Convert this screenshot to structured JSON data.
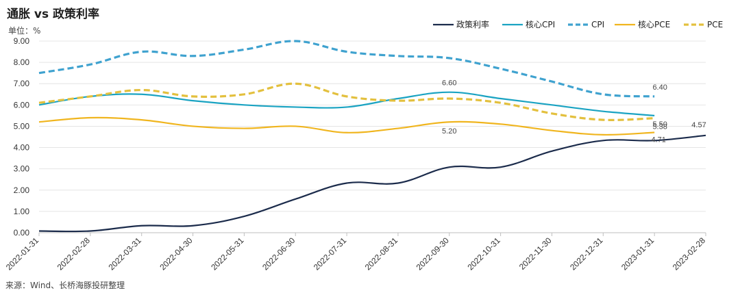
{
  "title": "通胀 vs 政策利率",
  "unit_label": "单位：%",
  "source": "来源：Wind、长桥海豚投研整理",
  "chart_data": {
    "type": "line",
    "categories": [
      "2022-01-31",
      "2022-02-28",
      "2022-03-31",
      "2022-04-30",
      "2022-05-31",
      "2022-06-30",
      "2022-07-31",
      "2022-08-31",
      "2022-09-30",
      "2022-10-31",
      "2022-11-30",
      "2022-12-31",
      "2023-01-31",
      "2023-02-28"
    ],
    "ylim": [
      0,
      9
    ],
    "yticks": [
      "0.00",
      "1.00",
      "2.00",
      "3.00",
      "4.00",
      "5.00",
      "6.00",
      "7.00",
      "8.00",
      "9.00"
    ],
    "grid": true,
    "legend_position": "top-right",
    "series": [
      {
        "name": "政策利率",
        "color": "#1b2b4b",
        "dash": false,
        "values": [
          0.08,
          0.08,
          0.33,
          0.33,
          0.77,
          1.58,
          2.33,
          2.33,
          3.08,
          3.08,
          3.83,
          4.33,
          4.33,
          4.57
        ]
      },
      {
        "name": "核心CPI",
        "color": "#1aa3c2",
        "dash": false,
        "values": [
          6.0,
          6.4,
          6.5,
          6.2,
          6.0,
          5.9,
          5.9,
          6.3,
          6.6,
          6.3,
          6.0,
          5.7,
          5.5,
          null
        ]
      },
      {
        "name": "CPI",
        "color": "#3fa2cf",
        "dash": true,
        "values": [
          7.5,
          7.9,
          8.5,
          8.3,
          8.6,
          9.1,
          8.5,
          8.3,
          8.2,
          7.7,
          7.1,
          6.5,
          6.4,
          null
        ]
      },
      {
        "name": "核心PCE",
        "color": "#f0b51e",
        "dash": false,
        "values": [
          5.2,
          5.4,
          5.3,
          5.0,
          4.9,
          5.0,
          4.7,
          4.9,
          5.2,
          5.1,
          4.8,
          4.6,
          4.71,
          null
        ]
      },
      {
        "name": "PCE",
        "color": "#e3c03e",
        "dash": true,
        "values": [
          6.1,
          6.4,
          6.7,
          6.4,
          6.5,
          7.0,
          6.4,
          6.2,
          6.3,
          6.1,
          5.6,
          5.3,
          5.38,
          null
        ]
      }
    ],
    "data_labels": [
      {
        "series": "核心CPI",
        "category": "2022-09-30",
        "text": "6.60"
      },
      {
        "series": "核心PCE",
        "category": "2022-09-30",
        "text": "5.20"
      },
      {
        "series": "CPI",
        "category": "2023-01-31",
        "text": "6.40"
      },
      {
        "series": "核心CPI",
        "category": "2023-01-31",
        "text": "5.50"
      },
      {
        "series": "PCE",
        "category": "2023-01-31",
        "text": "5.38"
      },
      {
        "series": "核心PCE",
        "category": "2023-01-31",
        "text": "4.71"
      },
      {
        "series": "政策利率",
        "category": "2023-02-28",
        "text": "4.57"
      }
    ]
  }
}
